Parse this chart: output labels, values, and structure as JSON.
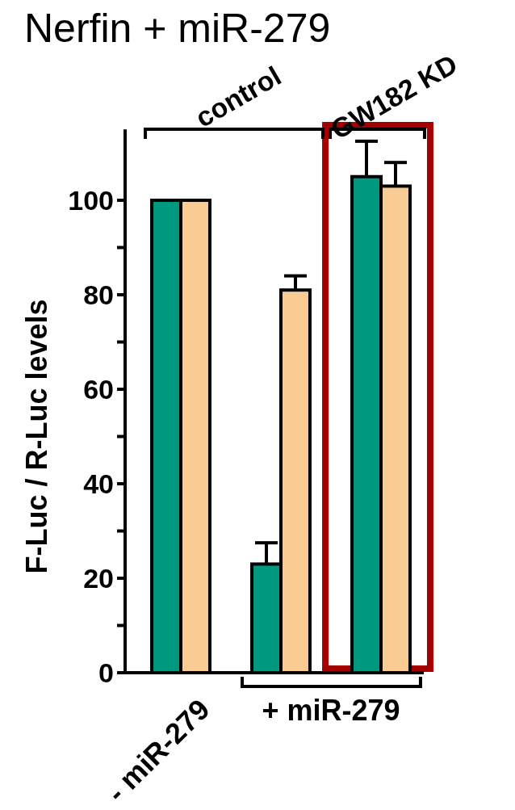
{
  "chart_data": {
    "type": "bar",
    "title": "Nerfin + miR-279",
    "ylabel": "F-Luc / R-Luc levels",
    "categories": [
      "- miR-279",
      null,
      null
    ],
    "series": [
      {
        "color": "#009980",
        "values": [
          100,
          23,
          105
        ],
        "errors": [
          null,
          4.5,
          7.5
        ]
      },
      {
        "color": "#f9cc96",
        "values": [
          100,
          81,
          103
        ],
        "errors": [
          null,
          3,
          5
        ]
      }
    ],
    "ylim": [
      0,
      115
    ],
    "yticks": [
      0,
      {
        "value": 10,
        "label": null
      },
      20,
      {
        "value": 30,
        "label": null
      },
      40,
      {
        "value": 50,
        "label": null
      },
      60,
      {
        "value": 70,
        "label": null
      },
      80,
      {
        "value": 90,
        "label": null
      },
      100
    ],
    "annotations": [
      "control",
      "GW182 KD",
      "+ miR-279"
    ]
  }
}
